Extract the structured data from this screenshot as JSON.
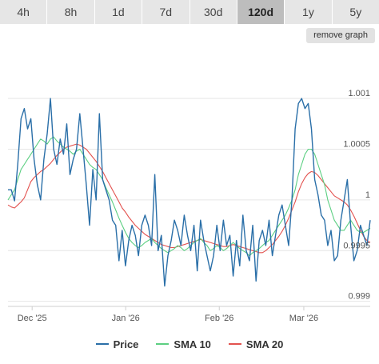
{
  "tabs": [
    {
      "label": "4h",
      "active": false
    },
    {
      "label": "8h",
      "active": false
    },
    {
      "label": "1d",
      "active": false
    },
    {
      "label": "7d",
      "active": false
    },
    {
      "label": "30d",
      "active": false
    },
    {
      "label": "120d",
      "active": true
    },
    {
      "label": "1y",
      "active": false
    },
    {
      "label": "5y",
      "active": false
    }
  ],
  "remove_graph_label": "remove graph",
  "chart_data": {
    "type": "line",
    "x_range": [
      "2025-11-23",
      "2026-03-23"
    ],
    "x_ticks": [
      {
        "date": "2025-12-01",
        "label": "Dec '25"
      },
      {
        "date": "2026-01-01",
        "label": "Jan '26"
      },
      {
        "date": "2026-02-01",
        "label": "Feb '26"
      },
      {
        "date": "2026-03-01",
        "label": "Mar '26"
      }
    ],
    "y_ticks": [
      {
        "value": 1.001,
        "label": "1.001"
      },
      {
        "value": 1.0005,
        "label": "1.0005"
      },
      {
        "value": 1,
        "label": "1"
      },
      {
        "value": 0.9995,
        "label": "0.9995"
      },
      {
        "value": 0.999,
        "label": "0.999"
      }
    ],
    "ylim": [
      0.99895,
      1.00145
    ],
    "grid": true,
    "legend_position": "bottom",
    "series": [
      {
        "name": "Price",
        "color": "#2a6fa8",
        "values": [
          1.0001,
          1.0001,
          0.99999,
          1.00035,
          1.0008,
          1.0009,
          1.0007,
          1.0008,
          1.0004,
          1.00015,
          1.0,
          1.0004,
          1.00065,
          1.001,
          1.0005,
          1.00035,
          1.0006,
          1.00045,
          1.00075,
          1.00025,
          1.0004,
          1.0005,
          1.00085,
          1.0005,
          1.00015,
          0.99975,
          1.0003,
          1.0,
          1.00085,
          1.0002,
          1.0001,
          1.0,
          0.9998,
          0.99975,
          0.9994,
          0.9997,
          0.99935,
          0.9996,
          0.99975,
          0.99965,
          0.99945,
          0.99975,
          0.99985,
          0.99975,
          0.99955,
          1.00025,
          0.9995,
          0.99965,
          0.99915,
          0.99945,
          0.9996,
          0.9998,
          0.9997,
          0.99955,
          0.99985,
          0.99965,
          0.9995,
          0.99975,
          0.9993,
          0.9998,
          0.9996,
          0.99945,
          0.9993,
          0.99945,
          0.99975,
          0.9995,
          0.9998,
          0.99955,
          0.99965,
          0.99925,
          0.9996,
          0.99935,
          0.99985,
          0.9995,
          0.9994,
          0.99975,
          0.9992,
          0.9996,
          0.9997,
          0.99955,
          0.9998,
          0.99945,
          0.99965,
          0.99985,
          0.99995,
          0.99975,
          0.99955,
          1.0,
          1.0007,
          1.00095,
          1.001,
          1.0009,
          1.00095,
          1.0007,
          1.0002,
          1.00005,
          0.99985,
          0.9998,
          0.99955,
          0.9997,
          0.9994,
          0.99945,
          0.9998,
          1.0,
          1.0002,
          0.99975,
          0.9994,
          0.9995,
          0.99975,
          0.99965,
          0.99955,
          0.9998
        ]
      },
      {
        "name": "SMA 10",
        "color": "#5ccf82",
        "values": [
          1.0,
          1.00005,
          1.0001,
          1.0002,
          1.0003,
          1.00035,
          1.0004,
          1.00045,
          1.0005,
          1.00055,
          1.0006,
          1.00058,
          1.00055,
          1.0006,
          1.00062,
          1.00058,
          1.00055,
          1.00052,
          1.0005,
          1.00048,
          1.00045,
          1.00048,
          1.0005,
          1.00045,
          1.0004,
          1.00035,
          1.00032,
          1.0003,
          1.00025,
          1.0002,
          1.00012,
          1.00005,
          0.99998,
          0.9999,
          0.99982,
          0.99975,
          0.99968,
          0.99962,
          0.99958,
          0.99955,
          0.99953,
          0.99955,
          0.99958,
          0.9996,
          0.99962,
          0.99958,
          0.99955,
          0.99952,
          0.9995,
          0.99948,
          0.9995,
          0.99952,
          0.99955,
          0.99953,
          0.9995,
          0.99952,
          0.99955,
          0.99958,
          0.9996,
          0.99962,
          0.99958,
          0.99955,
          0.9995,
          0.99952,
          0.99955,
          0.99953,
          0.9995,
          0.99952,
          0.99955,
          0.99958,
          0.99955,
          0.99952,
          0.9995,
          0.99948,
          0.99945,
          0.99948,
          0.9995,
          0.99952,
          0.99955,
          0.99958,
          0.9996,
          0.99965,
          0.9997,
          0.99975,
          0.9998,
          0.99985,
          0.99992,
          1.0,
          1.0001,
          1.00025,
          1.00035,
          1.00045,
          1.0005,
          1.0005,
          1.00045,
          1.00035,
          1.00025,
          1.00015,
          1.0,
          0.9999,
          0.9998,
          0.99975,
          0.9997,
          0.9997,
          0.99975,
          0.9998,
          0.99975,
          0.9997,
          0.99968,
          0.99968,
          0.9997,
          0.99972
        ]
      },
      {
        "name": "SMA 20",
        "color": "#e3524f",
        "values": [
          0.99995,
          0.99993,
          0.99992,
          0.99995,
          0.99998,
          1.00002,
          1.0001,
          1.00018,
          1.00022,
          1.00025,
          1.00028,
          1.0003,
          1.00033,
          1.00036,
          1.0004,
          1.00044,
          1.00047,
          1.0005,
          1.00052,
          1.00053,
          1.00054,
          1.00055,
          1.00054,
          1.00052,
          1.0005,
          1.00046,
          1.00042,
          1.00038,
          1.00033,
          1.00028,
          1.00022,
          1.00016,
          1.0001,
          1.00004,
          0.99998,
          0.99992,
          0.99988,
          0.99983,
          0.99979,
          0.99975,
          0.99972,
          0.99969,
          0.99966,
          0.99964,
          0.99962,
          0.9996,
          0.99958,
          0.99956,
          0.99955,
          0.99954,
          0.99953,
          0.99953,
          0.99954,
          0.99955,
          0.99956,
          0.99957,
          0.99958,
          0.99959,
          0.9996,
          0.99961,
          0.9996,
          0.99959,
          0.99958,
          0.99957,
          0.99956,
          0.99955,
          0.99954,
          0.99954,
          0.99955,
          0.99956,
          0.99955,
          0.99954,
          0.99953,
          0.99952,
          0.99951,
          0.9995,
          0.99949,
          0.99948,
          0.99948,
          0.9995,
          0.99953,
          0.99956,
          0.9996,
          0.99964,
          0.99969,
          0.99975,
          0.99982,
          0.9999,
          0.99998,
          1.00008,
          1.00016,
          1.00022,
          1.00026,
          1.00028,
          1.00027,
          1.00024,
          1.0002,
          1.00016,
          1.00012,
          1.00008,
          1.00004,
          1.00002,
          1.0,
          0.99998,
          0.99995,
          0.9999,
          0.99984,
          0.99977,
          0.9997,
          0.99964,
          0.9996,
          0.99958
        ]
      }
    ]
  }
}
